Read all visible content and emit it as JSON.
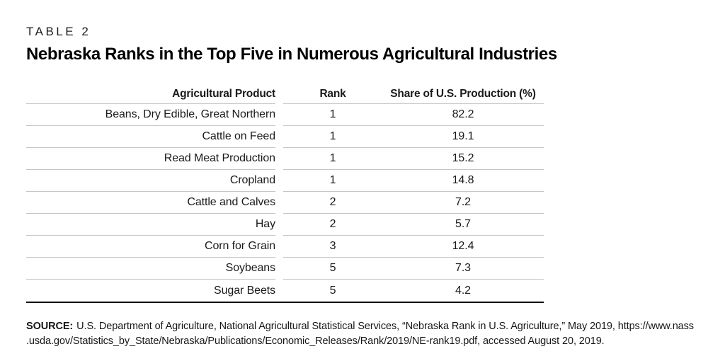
{
  "figure": {
    "eyebrow": "TABLE 2",
    "title": "Nebraska Ranks in the Top Five in Numerous Agricultural Industries"
  },
  "table": {
    "columns": [
      "Agricultural Product",
      "Rank",
      "Share of U.S. Production (%)"
    ],
    "rows": [
      {
        "product": "Beans, Dry Edible, Great Northern",
        "rank": "1",
        "share": "82.2"
      },
      {
        "product": "Cattle on Feed",
        "rank": "1",
        "share": "19.1"
      },
      {
        "product": "Read Meat Production",
        "rank": "1",
        "share": "15.2"
      },
      {
        "product": "Cropland",
        "rank": "1",
        "share": "14.8"
      },
      {
        "product": "Cattle and Calves",
        "rank": "2",
        "share": "7.2"
      },
      {
        "product": "Hay",
        "rank": "2",
        "share": "5.7"
      },
      {
        "product": "Corn for Grain",
        "rank": "3",
        "share": "12.4"
      },
      {
        "product": "Soybeans",
        "rank": "5",
        "share": "7.3"
      },
      {
        "product": "Sugar Beets",
        "rank": "5",
        "share": "4.2"
      }
    ]
  },
  "source": {
    "label": "SOURCE:",
    "line1": "U.S. Department of Agriculture, National Agricultural Statistical Services, “Nebraska Rank in U.S. Agriculture,” May 2019, https://www.nass",
    "line2": ".usda.gov/Statistics_by_State/Nebraska/Publications/Economic_Releases/Rank/2019/NE-rank19.pdf, accessed August 20, 2019."
  },
  "colors": {
    "text": "#1a1a1a",
    "row_rule": "#c6c6c6",
    "bottom_rule": "#111111"
  },
  "chart_data": {
    "type": "table",
    "title": "Nebraska Ranks in the Top Five in Numerous Agricultural Industries",
    "subtitle": "TABLE 2",
    "columns": [
      "Agricultural Product",
      "Rank",
      "Share of U.S. Production (%)"
    ],
    "rows": [
      [
        "Beans, Dry Edible, Great Northern",
        1,
        82.2
      ],
      [
        "Cattle on Feed",
        1,
        19.1
      ],
      [
        "Read Meat Production",
        1,
        15.2
      ],
      [
        "Cropland",
        1,
        14.8
      ],
      [
        "Cattle and Calves",
        2,
        7.2
      ],
      [
        "Hay",
        2,
        5.7
      ],
      [
        "Corn for Grain",
        3,
        12.4
      ],
      [
        "Soybeans",
        5,
        7.3
      ],
      [
        "Sugar Beets",
        5,
        4.2
      ]
    ]
  }
}
